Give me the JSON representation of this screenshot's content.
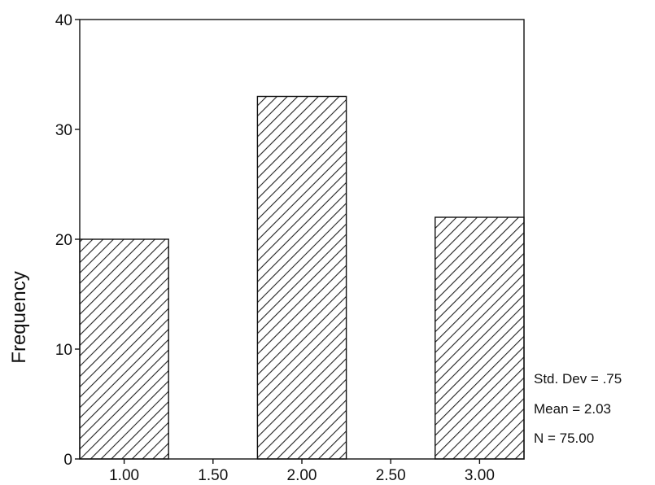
{
  "chart_data": {
    "type": "bar",
    "title": "",
    "xlabel": "",
    "ylabel": "Frequency",
    "categories": [
      "1.00",
      "2.00",
      "3.00"
    ],
    "x": [
      1.0,
      2.0,
      3.0
    ],
    "values": [
      20,
      33,
      22
    ],
    "bar_width": 0.5,
    "xlim": [
      0.75,
      3.25
    ],
    "ylim": [
      0,
      40
    ],
    "x_ticks": [
      1.0,
      1.5,
      2.0,
      2.5,
      3.0
    ],
    "x_tick_labels": [
      "1.00",
      "1.50",
      "2.00",
      "2.50",
      "3.00"
    ],
    "y_ticks": [
      0,
      10,
      20,
      30,
      40
    ],
    "y_tick_labels": [
      "0",
      "10",
      "20",
      "30",
      "40"
    ],
    "grid": false,
    "bar_fill": "diagonal-hatch",
    "bar_color": "#222222",
    "stats": {
      "std_dev": "Std. Dev = .75",
      "mean": "Mean = 2.03",
      "n": "N = 75.00"
    }
  }
}
